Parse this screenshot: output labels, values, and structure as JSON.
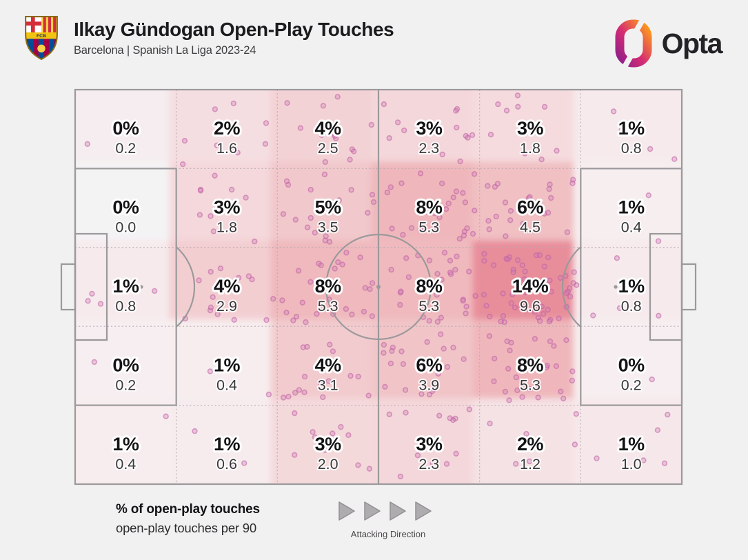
{
  "header": {
    "title": "Ilkay Gündogan Open-Play Touches",
    "subtitle": "Barcelona | Spanish La Liga 2023-24",
    "crest_text": "FCB",
    "brand": "Opta"
  },
  "legend": {
    "primary": "% of open-play touches",
    "secondary": "open-play touches per 90",
    "direction_label": "Attacking Direction"
  },
  "style": {
    "background": "#f2f1f2",
    "pitch_line": "#9b999b",
    "grid_line": "#b7adb1",
    "pct_text": "#141416",
    "per90_text": "#39393b",
    "halo": "#ffffff",
    "dot_fill": "#cf7fb4",
    "dot_stroke": "#c05fa4",
    "arrow_fill": "#aeacae",
    "arrow_stroke": "#929092",
    "opta_gradient": [
      "#8e1e8b",
      "#d62d72",
      "#ff9e18"
    ],
    "crest_colors": {
      "red": "#d42e3a",
      "yellow": "#fcd34d",
      "gold": "#f1c40f",
      "blue": "#004d98",
      "garnet": "#a50044",
      "ball": "#f8d24a",
      "border": "#8a6a14",
      "fcb_text": "#1a2a6c"
    }
  },
  "scatter": {
    "seed": 1234567,
    "dots_per_unit": 5
  },
  "chart_data": {
    "type": "heatmap",
    "title": "Ilkay Gündogan Open-Play Touches",
    "subtitle": "Barcelona | Spanish La Liga 2023-24",
    "attacking_direction": "left-to-right",
    "grid": {
      "rows": 5,
      "cols": 6
    },
    "primary_metric": "% of open-play touches",
    "secondary_metric": "open-play touches per 90",
    "cells": [
      {
        "row": 1,
        "col": 1,
        "pct": "0%",
        "per90": "0.2",
        "color": "#f5edef"
      },
      {
        "row": 1,
        "col": 2,
        "pct": "2%",
        "per90": "1.6",
        "color": "#f5dee1"
      },
      {
        "row": 1,
        "col": 3,
        "pct": "4%",
        "per90": "2.5",
        "color": "#f3d2d5"
      },
      {
        "row": 1,
        "col": 4,
        "pct": "3%",
        "per90": "2.3",
        "color": "#f4d7da"
      },
      {
        "row": 1,
        "col": 5,
        "pct": "3%",
        "per90": "1.8",
        "color": "#f5dbde"
      },
      {
        "row": 1,
        "col": 6,
        "pct": "1%",
        "per90": "0.8",
        "color": "#f6eaec"
      },
      {
        "row": 2,
        "col": 1,
        "pct": "0%",
        "per90": "0.0",
        "color": "#f4f3f4"
      },
      {
        "row": 2,
        "col": 2,
        "pct": "3%",
        "per90": "1.8",
        "color": "#f4d8db"
      },
      {
        "row": 2,
        "col": 3,
        "pct": "5%",
        "per90": "3.5",
        "color": "#f1c8cb"
      },
      {
        "row": 2,
        "col": 4,
        "pct": "8%",
        "per90": "5.3",
        "color": "#efb7bb"
      },
      {
        "row": 2,
        "col": 5,
        "pct": "6%",
        "per90": "4.5",
        "color": "#f0c0c3"
      },
      {
        "row": 2,
        "col": 6,
        "pct": "1%",
        "per90": "0.4",
        "color": "#f7eef0"
      },
      {
        "row": 3,
        "col": 1,
        "pct": "1%",
        "per90": "0.8",
        "color": "#f6eaec"
      },
      {
        "row": 3,
        "col": 2,
        "pct": "4%",
        "per90": "2.9",
        "color": "#f3ced1"
      },
      {
        "row": 3,
        "col": 3,
        "pct": "8%",
        "per90": "5.3",
        "color": "#efb9bd"
      },
      {
        "row": 3,
        "col": 4,
        "pct": "8%",
        "per90": "5.3",
        "color": "#efb9bd"
      },
      {
        "row": 3,
        "col": 5,
        "pct": "14%",
        "per90": "9.6",
        "color": "#e88e9b"
      },
      {
        "row": 3,
        "col": 6,
        "pct": "1%",
        "per90": "0.8",
        "color": "#f6eaec"
      },
      {
        "row": 4,
        "col": 1,
        "pct": "0%",
        "per90": "0.2",
        "color": "#f6eef0"
      },
      {
        "row": 4,
        "col": 2,
        "pct": "1%",
        "per90": "0.4",
        "color": "#f7edef"
      },
      {
        "row": 4,
        "col": 3,
        "pct": "4%",
        "per90": "3.1",
        "color": "#f2cbce"
      },
      {
        "row": 4,
        "col": 4,
        "pct": "6%",
        "per90": "3.9",
        "color": "#f1c5c8"
      },
      {
        "row": 4,
        "col": 5,
        "pct": "8%",
        "per90": "5.3",
        "color": "#efb7bb"
      },
      {
        "row": 4,
        "col": 6,
        "pct": "0%",
        "per90": "0.2",
        "color": "#f6eef0"
      },
      {
        "row": 5,
        "col": 1,
        "pct": "1%",
        "per90": "0.4",
        "color": "#f7edef"
      },
      {
        "row": 5,
        "col": 2,
        "pct": "1%",
        "per90": "0.6",
        "color": "#f6ecee"
      },
      {
        "row": 5,
        "col": 3,
        "pct": "3%",
        "per90": "2.0",
        "color": "#f4d9db"
      },
      {
        "row": 5,
        "col": 4,
        "pct": "3%",
        "per90": "2.3",
        "color": "#f4d7da"
      },
      {
        "row": 5,
        "col": 5,
        "pct": "2%",
        "per90": "1.2",
        "color": "#f5e2e5"
      },
      {
        "row": 5,
        "col": 6,
        "pct": "1%",
        "per90": "1.0",
        "color": "#f6e8ea"
      }
    ]
  }
}
